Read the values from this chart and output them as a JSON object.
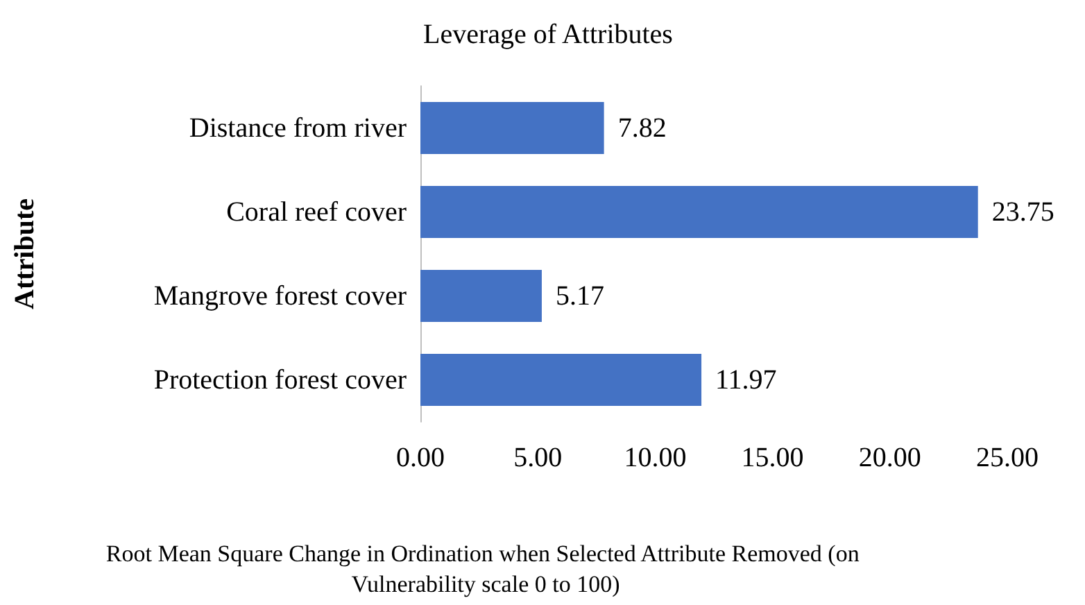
{
  "chart_data": {
    "type": "bar",
    "orientation": "horizontal",
    "title": "Leverage of Attributes",
    "xlabel": "Root Mean Square Change in Ordination when Selected Attribute Removed (on Vulnerability scale 0 to 100)",
    "ylabel": "Attribute",
    "categories": [
      "Distance from river",
      "Coral reef cover",
      "Mangrove forest cover",
      "Protection forest cover"
    ],
    "values": [
      7.82,
      23.75,
      5.17,
      11.97
    ],
    "color": "#4472c4",
    "xlim": [
      0,
      25
    ],
    "xticks": [
      {
        "value": 0,
        "label": "0.00"
      },
      {
        "value": 5,
        "label": "5.00"
      },
      {
        "value": 10,
        "label": "10.00"
      },
      {
        "value": 15,
        "label": "15.00"
      },
      {
        "value": 20,
        "label": "20.00"
      },
      {
        "value": 25,
        "label": "25.00"
      }
    ],
    "grid": false,
    "data_labels": true
  }
}
